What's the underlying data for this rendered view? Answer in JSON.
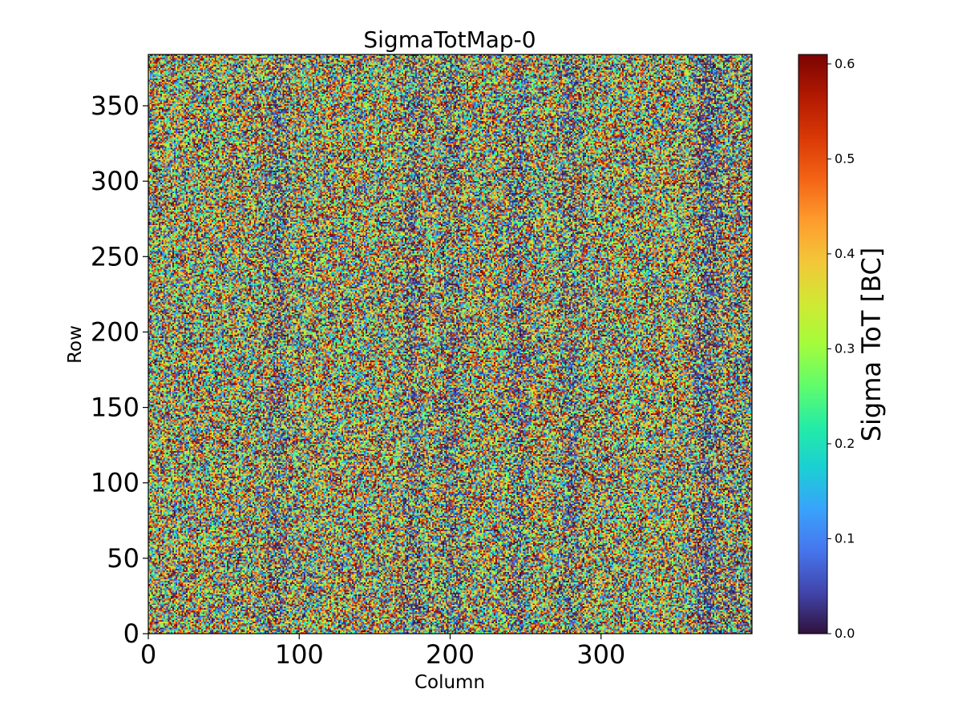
{
  "chart_data": {
    "type": "heatmap",
    "title": "SigmaTotMap-0",
    "xlabel": "Column",
    "ylabel": "Row",
    "xlim": [
      0,
      400
    ],
    "ylim": [
      0,
      384
    ],
    "grid": false,
    "x_ticks": [
      0,
      100,
      200,
      300
    ],
    "y_ticks": [
      0,
      50,
      100,
      150,
      200,
      250,
      300,
      350
    ],
    "colorbar": {
      "label": "Sigma ToT [BC]",
      "range": [
        0.0,
        0.61
      ],
      "ticks": [
        "0.0",
        "0.1",
        "0.2",
        "0.3",
        "0.4",
        "0.5",
        "0.6"
      ],
      "colormap": "turbo",
      "colors": [
        "#30123b",
        "#4145ab",
        "#4675ed",
        "#39a2fc",
        "#1bcfd4",
        "#24eca6",
        "#61fc6c",
        "#a4fc3b",
        "#d1e834",
        "#f3c63a",
        "#fe9b2d",
        "#f36315",
        "#d93806",
        "#b11901",
        "#7a0403"
      ]
    },
    "description_values": {
      "typical_sigma_range": [
        0.0,
        0.61
      ],
      "low_sigma_column_bands": [
        85,
        175,
        200,
        245,
        280,
        370
      ]
    }
  }
}
